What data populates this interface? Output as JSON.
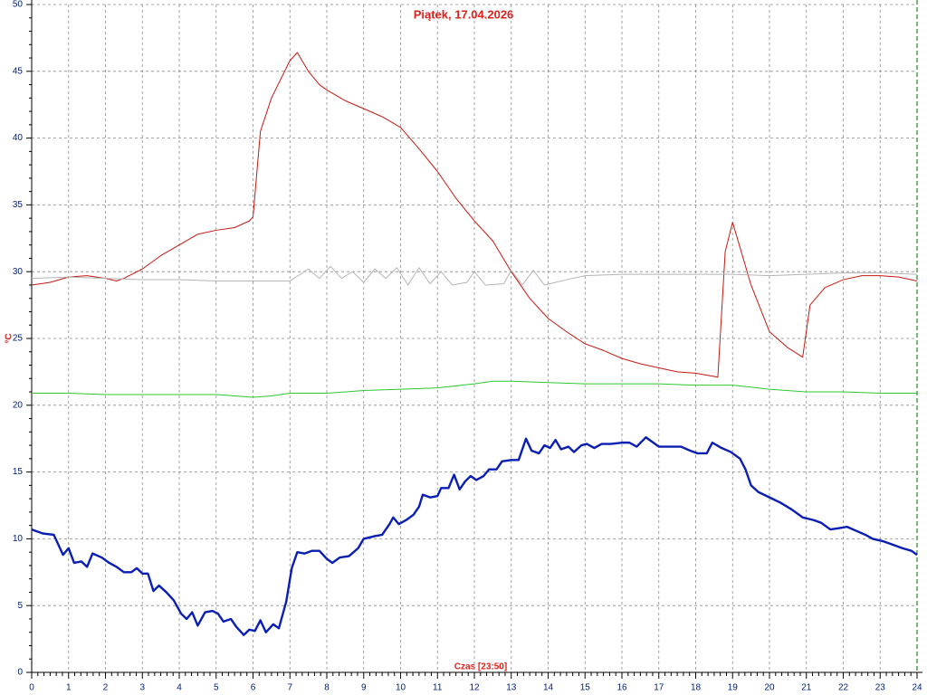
{
  "chart_data": {
    "type": "line",
    "title": "Piątek, 17.04.2026",
    "x_label": "Czas [23:50]",
    "y_label": "°C",
    "xlim": [
      0,
      24
    ],
    "xticks": [
      0,
      1,
      2,
      3,
      4,
      5,
      6,
      7,
      8,
      9,
      10,
      11,
      12,
      13,
      14,
      15,
      16,
      17,
      18,
      19,
      20,
      21,
      22,
      23,
      24
    ],
    "ylim": [
      0,
      50
    ],
    "yticks": [
      0,
      5,
      10,
      15,
      20,
      25,
      30,
      35,
      40,
      45,
      50
    ],
    "grid": true,
    "series": [
      {
        "color": "#c41a12",
        "x": [
          0,
          0.5,
          1,
          1.5,
          2,
          2.3,
          2.5,
          3,
          3.5,
          4,
          4.5,
          5,
          5.5,
          5.9,
          6,
          6.2,
          6.5,
          7,
          7.2,
          7.5,
          7.8,
          8,
          8.5,
          9,
          9.5,
          10,
          10.5,
          11,
          11.5,
          12,
          12.5,
          13,
          13.5,
          14,
          14.5,
          15,
          15.5,
          16,
          16.5,
          17,
          17.5,
          18,
          18.6,
          18.8,
          19,
          19.5,
          20,
          20.5,
          20.9,
          21.1,
          21.5,
          22,
          22.5,
          23,
          23.5,
          24
        ],
        "values": [
          29.0,
          29.2,
          29.6,
          29.7,
          29.5,
          29.3,
          29.5,
          30.2,
          31.2,
          32.0,
          32.8,
          33.1,
          33.3,
          33.8,
          34.1,
          40.5,
          43.0,
          45.8,
          46.4,
          45.0,
          44.0,
          43.6,
          42.8,
          42.2,
          41.6,
          40.8,
          39.2,
          37.5,
          35.5,
          33.8,
          32.3,
          30.0,
          28.0,
          26.5,
          25.5,
          24.6,
          24.1,
          23.5,
          23.1,
          22.8,
          22.5,
          22.4,
          22.1,
          31.5,
          33.7,
          29.0,
          25.5,
          24.3,
          23.6,
          27.5,
          28.8,
          29.4,
          29.7,
          29.7,
          29.6,
          29.3
        ]
      },
      {
        "color": "#b4b4b4",
        "x": [
          0,
          1,
          2,
          3,
          4,
          5,
          6,
          7,
          7.5,
          7.8,
          8.1,
          8.4,
          8.7,
          9,
          9.3,
          9.6,
          9.9,
          10.2,
          10.5,
          10.8,
          11.1,
          11.4,
          11.8,
          12,
          12.3,
          12.8,
          13,
          13.3,
          13.6,
          13.9,
          14.5,
          15,
          16,
          17,
          18,
          19,
          20,
          21,
          22,
          23,
          24
        ],
        "values": [
          29.5,
          29.6,
          29.5,
          29.4,
          29.4,
          29.3,
          29.3,
          29.3,
          30.2,
          29.5,
          30.4,
          29.5,
          30.0,
          29.2,
          30.2,
          29.5,
          30.3,
          29.0,
          30.3,
          29.1,
          30.0,
          29.0,
          29.2,
          30.0,
          29.0,
          29.1,
          30.1,
          29.0,
          30.1,
          29.0,
          29.4,
          29.7,
          29.8,
          29.8,
          29.8,
          29.8,
          29.7,
          29.8,
          29.9,
          29.9,
          29.8
        ]
      },
      {
        "color": "#2ec82e",
        "x": [
          0,
          1,
          2,
          3,
          4,
          5,
          6,
          6.5,
          7,
          8,
          9,
          10,
          11,
          12,
          12.5,
          13,
          14,
          15,
          16,
          17,
          18,
          19,
          20,
          21,
          22,
          23,
          24
        ],
        "values": [
          20.9,
          20.9,
          20.8,
          20.8,
          20.8,
          20.8,
          20.6,
          20.7,
          20.9,
          20.9,
          21.1,
          21.2,
          21.3,
          21.6,
          21.8,
          21.8,
          21.7,
          21.6,
          21.6,
          21.6,
          21.5,
          21.5,
          21.2,
          21.0,
          21.0,
          20.9,
          20.9
        ]
      },
      {
        "color": "#0a1eb4",
        "x": [
          0,
          0.3,
          0.6,
          0.85,
          1.0,
          1.15,
          1.35,
          1.5,
          1.65,
          1.9,
          2.1,
          2.3,
          2.5,
          2.7,
          2.85,
          3.0,
          3.15,
          3.3,
          3.45,
          3.65,
          3.85,
          4.05,
          4.2,
          4.35,
          4.5,
          4.7,
          4.9,
          5.05,
          5.2,
          5.4,
          5.55,
          5.75,
          5.9,
          6.05,
          6.2,
          6.35,
          6.55,
          6.7,
          6.9,
          7.05,
          7.2,
          7.4,
          7.6,
          7.8,
          8.0,
          8.15,
          8.35,
          8.6,
          8.85,
          9.0,
          9.3,
          9.5,
          9.7,
          9.8,
          9.95,
          10.15,
          10.35,
          10.5,
          10.6,
          10.8,
          11.0,
          11.1,
          11.3,
          11.45,
          11.6,
          11.75,
          11.9,
          12.05,
          12.25,
          12.4,
          12.6,
          12.75,
          13.0,
          13.2,
          13.4,
          13.55,
          13.75,
          13.9,
          14.05,
          14.2,
          14.35,
          14.55,
          14.7,
          14.9,
          15.05,
          15.25,
          15.45,
          15.7,
          16.0,
          16.2,
          16.4,
          16.65,
          16.85,
          17.0,
          17.3,
          17.6,
          17.85,
          18.05,
          18.3,
          18.45,
          18.7,
          18.95,
          19.2,
          19.35,
          19.5,
          19.7,
          20.0,
          20.3,
          20.6,
          20.9,
          21.2,
          21.4,
          21.65,
          21.9,
          22.1,
          22.35,
          22.6,
          22.8,
          23.1,
          23.4,
          23.6,
          23.85,
          24
        ],
        "values": [
          10.7,
          10.4,
          10.3,
          8.8,
          9.3,
          8.2,
          8.3,
          7.9,
          8.9,
          8.6,
          8.2,
          7.9,
          7.5,
          7.5,
          7.8,
          7.4,
          7.4,
          6.1,
          6.5,
          6.0,
          5.4,
          4.4,
          4.0,
          4.5,
          3.5,
          4.5,
          4.6,
          4.4,
          3.8,
          4.0,
          3.4,
          2.8,
          3.2,
          3.1,
          3.9,
          3.0,
          3.6,
          3.3,
          5.3,
          7.8,
          9.0,
          8.9,
          9.1,
          9.1,
          8.5,
          8.2,
          8.6,
          8.7,
          9.3,
          10.0,
          10.2,
          10.3,
          11.1,
          11.6,
          11.1,
          11.4,
          11.8,
          12.4,
          13.3,
          13.1,
          13.2,
          13.8,
          13.8,
          14.8,
          13.7,
          14.3,
          14.7,
          14.4,
          14.7,
          15.2,
          15.2,
          15.8,
          15.9,
          15.9,
          17.5,
          16.6,
          16.4,
          17.0,
          16.8,
          17.4,
          16.7,
          16.9,
          16.5,
          17.0,
          17.1,
          16.8,
          17.1,
          17.1,
          17.2,
          17.2,
          16.9,
          17.6,
          17.2,
          16.9,
          16.9,
          16.9,
          16.6,
          16.4,
          16.4,
          17.2,
          16.8,
          16.5,
          16.0,
          15.2,
          14.0,
          13.5,
          13.1,
          12.7,
          12.2,
          11.6,
          11.4,
          11.2,
          10.7,
          10.8,
          10.9,
          10.6,
          10.3,
          10.0,
          9.8,
          9.5,
          9.3,
          9.1,
          8.8
        ]
      }
    ]
  }
}
